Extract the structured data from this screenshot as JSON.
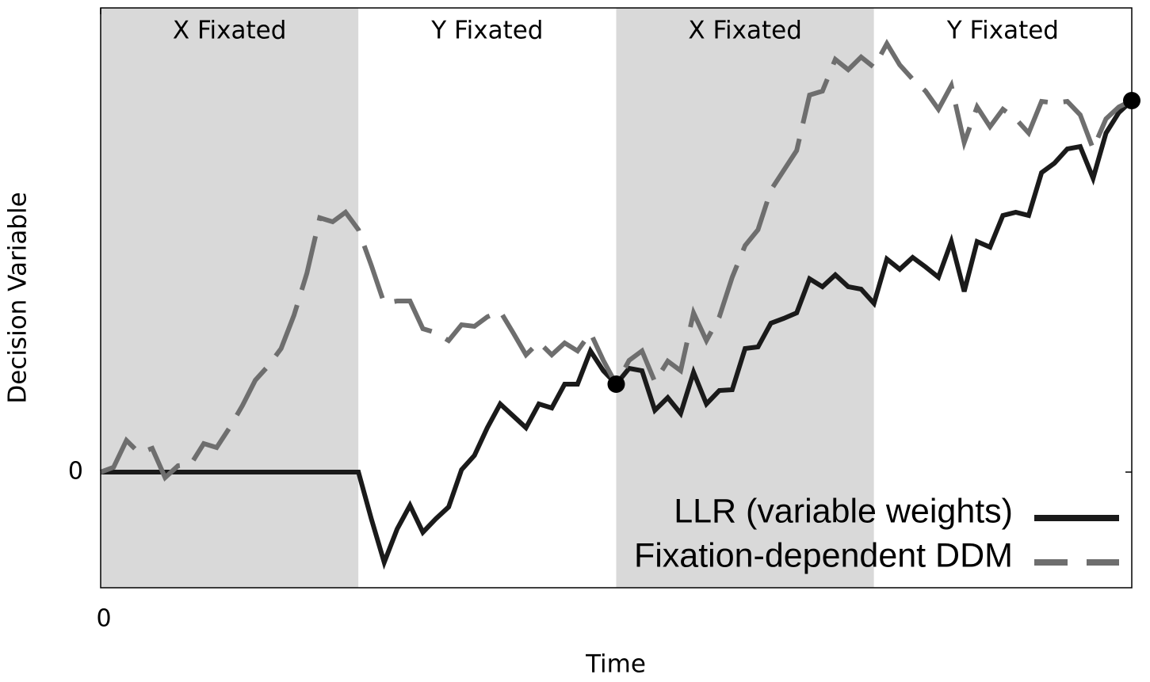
{
  "chart_data": {
    "type": "line",
    "xlabel": "Time",
    "ylabel": "Decision Variable",
    "x": [
      0,
      1,
      2,
      3,
      4,
      5,
      6,
      7,
      8,
      9,
      10,
      11,
      12,
      13,
      14,
      15,
      16,
      17,
      18,
      19,
      20,
      21,
      22,
      23,
      24,
      25,
      26,
      27,
      28,
      29,
      30,
      31,
      32,
      33,
      34,
      35,
      36,
      37,
      38,
      39,
      40,
      41,
      42,
      43,
      44,
      45,
      46,
      47,
      48,
      49,
      50,
      51,
      52,
      53,
      54,
      55,
      56,
      57,
      58,
      59,
      60,
      61,
      62,
      63,
      64,
      65,
      66,
      67,
      68,
      69,
      70,
      71,
      72,
      73,
      74,
      75,
      76,
      77,
      78,
      79,
      80
    ],
    "xlim": [
      0,
      80
    ],
    "xticks": [
      0
    ],
    "ylim": [
      -7.3,
      29.3
    ],
    "yticks": [
      0
    ],
    "regions": [
      {
        "label": "X Fixated",
        "start": 0,
        "end": 20,
        "color": "#d9d9d9"
      },
      {
        "label": "Y Fixated",
        "start": 20,
        "end": 40,
        "color": "#ffffff"
      },
      {
        "label": "X Fixated",
        "start": 40,
        "end": 60,
        "color": "#d9d9d9"
      },
      {
        "label": "Y Fixated",
        "start": 60,
        "end": 80,
        "color": "#ffffff"
      }
    ],
    "markers_x": [
      40,
      80
    ],
    "legend": "lower right",
    "series": [
      {
        "name": "LLR (variable weights)",
        "color": "#1a1a1a",
        "style": "solid",
        "values": [
          0,
          0,
          0,
          0,
          0,
          0,
          0,
          0,
          0,
          0,
          0,
          0,
          0,
          0,
          0,
          0,
          0,
          0,
          0,
          0,
          0,
          -2.95,
          -5.7,
          -3.6,
          -2.1,
          -3.8,
          -2.95,
          -2.2,
          0.15,
          1.05,
          2.8,
          4.3,
          3.55,
          2.8,
          4.3,
          4.05,
          5.55,
          5.55,
          7.65,
          6.4,
          5.55,
          6.55,
          6.4,
          3.9,
          4.7,
          3.7,
          6.3,
          4.3,
          5.15,
          5.2,
          7.8,
          7.9,
          9.4,
          9.7,
          10.05,
          12.2,
          11.7,
          12.45,
          11.7,
          11.55,
          10.65,
          13.45,
          12.8,
          13.55,
          12.95,
          12.3,
          14.55,
          11.4,
          14.55,
          14.2,
          16.2,
          16.4,
          16.2,
          18.9,
          19.5,
          20.4,
          20.55,
          18.55,
          21.4,
          22.7,
          23.45
        ]
      },
      {
        "name": "Fixation-dependent DDM",
        "color": "#6e6e6e",
        "style": "dashed",
        "values": [
          0,
          0.3,
          2,
          1.2,
          1.5,
          -0.35,
          0.4,
          0.5,
          1.8,
          1.55,
          2.8,
          4.2,
          5.8,
          6.7,
          7.8,
          9.9,
          12.55,
          16.05,
          15.8,
          16.4,
          15.3,
          13.05,
          10.65,
          10.8,
          10.8,
          9.05,
          8.8,
          8.3,
          9.3,
          9.2,
          9.8,
          10.15,
          8.8,
          7.4,
          8.2,
          7.4,
          8.15,
          7.65,
          8.8,
          7.05,
          5.55,
          7.05,
          7.65,
          5.7,
          7,
          6.4,
          10.05,
          8.3,
          9.8,
          12.3,
          14.3,
          15.3,
          17.8,
          19.05,
          20.3,
          23.8,
          24.05,
          26.05,
          25.4,
          26.2,
          25.55,
          27.05,
          25.7,
          24.8,
          24.05,
          22.9,
          24.4,
          20.8,
          23.05,
          21.8,
          22.9,
          22.3,
          21.4,
          23.4,
          23.3,
          23.4,
          22.55,
          20.4,
          22.3,
          23.05,
          23.45
        ]
      }
    ]
  }
}
